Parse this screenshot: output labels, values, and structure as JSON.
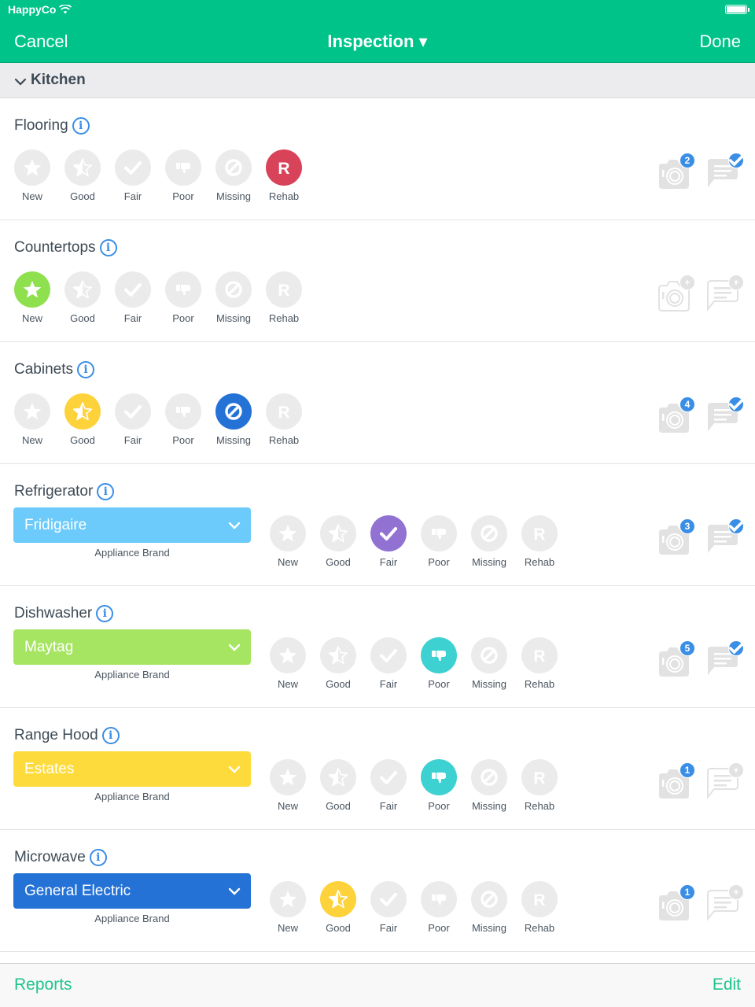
{
  "status_bar": {
    "carrier": "HappyCo",
    "wifi_icon": "wifi-icon",
    "battery_icon": "battery-icon"
  },
  "nav": {
    "cancel_label": "Cancel",
    "title": "Inspection ▾",
    "done_label": "Done"
  },
  "section": {
    "label": "Kitchen",
    "icon": "chevron-down-icon"
  },
  "colors": {
    "brand": "#00c389",
    "inactive": "#ebebeb",
    "new": "#8fe04e",
    "good": "#fdd23b",
    "fair": "#9172d3",
    "poor": "#3ed1d1",
    "missing": "#2472d6",
    "rehab": "#d9435a",
    "badge": "#3a8ee6",
    "footer_text": "#1fc58c"
  },
  "rating_labels": [
    "New",
    "Good",
    "Fair",
    "Poor",
    "Missing",
    "Rehab"
  ],
  "items": [
    {
      "name": "Flooring",
      "selected": "Rehab",
      "photos": "2",
      "comments": "check",
      "has_photos": true,
      "has_comments": true
    },
    {
      "name": "Countertops",
      "selected": "New",
      "photos": "+",
      "comments": "+",
      "has_photos": false,
      "has_comments": false
    },
    {
      "name": "Cabinets",
      "selected": [
        "Good",
        "Missing"
      ],
      "photos": "4",
      "comments": "check",
      "has_photos": true,
      "has_comments": true
    },
    {
      "name": "Refrigerator",
      "brand": "Fridigaire",
      "brand_color": "#6ccbfb",
      "brand_caption": "Appliance Brand",
      "selected": "Fair",
      "photos": "3",
      "comments": "check",
      "has_photos": true,
      "has_comments": true
    },
    {
      "name": "Dishwasher",
      "brand": "Maytag",
      "brand_color": "#a6e561",
      "brand_caption": "Appliance Brand",
      "selected": "Poor",
      "photos": "5",
      "comments": "check",
      "has_photos": true,
      "has_comments": true
    },
    {
      "name": "Range Hood",
      "brand": "Estates",
      "brand_color": "#fedb3c",
      "brand_caption": "Appliance Brand",
      "selected": "Poor",
      "photos": "1",
      "comments": "+",
      "has_photos": true,
      "has_comments": false
    },
    {
      "name": "Microwave",
      "brand": "General Electric",
      "brand_color": "#2472d6",
      "brand_caption": "Appliance Brand",
      "selected": "Good",
      "photos": "1",
      "comments": "+",
      "has_photos": true,
      "has_comments": false
    }
  ],
  "footer": {
    "reports_label": "Reports",
    "edit_label": "Edit"
  }
}
